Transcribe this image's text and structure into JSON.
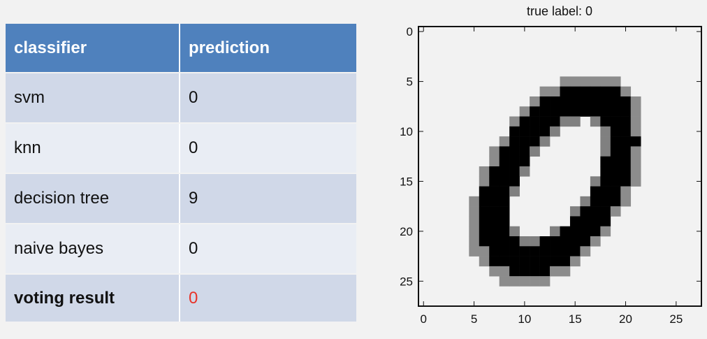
{
  "table": {
    "headers": [
      "classifier",
      "prediction"
    ],
    "rows": [
      {
        "classifier": "svm",
        "prediction": "0"
      },
      {
        "classifier": "knn",
        "prediction": "0"
      },
      {
        "classifier": "decision tree",
        "prediction": "9"
      },
      {
        "classifier": "naive bayes",
        "prediction": "0"
      },
      {
        "classifier": "voting result",
        "prediction": "0"
      }
    ],
    "colors": {
      "header": "#4f81bd",
      "row_dark": "#d0d8e8",
      "row_light": "#e9edf4",
      "voting_value": "#e8342a"
    }
  },
  "plot": {
    "title": "true label: 0",
    "x_ticks": [
      "0",
      "5",
      "10",
      "15",
      "20",
      "25"
    ],
    "y_ticks": [
      "0",
      "5",
      "10",
      "15",
      "20",
      "25"
    ],
    "image_size": 28
  }
}
